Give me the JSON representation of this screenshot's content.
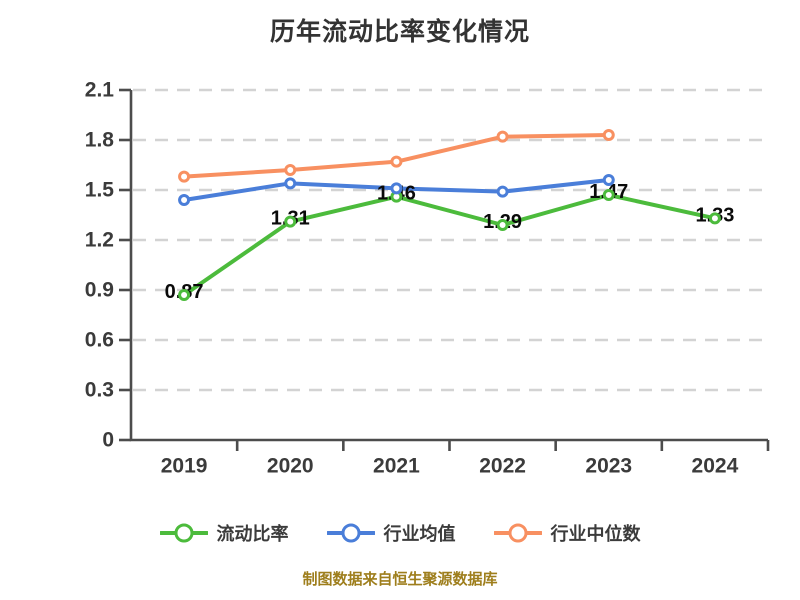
{
  "title": "历年流动比率变化情况",
  "footer": "制图数据来自恒生聚源数据库",
  "colors": {
    "title_text": "#333333",
    "axis_line": "#4c4c4c",
    "axis_label": "#3b3b3b",
    "gridline": "#d3d3d3",
    "data_label": "#0a0a0a",
    "legend_text": "#3b3b3b",
    "footer_text": "#9e7e1c",
    "marker_fill": "#ffffff"
  },
  "chart_data": {
    "type": "line",
    "title": "历年流动比率变化情况",
    "categories": [
      "2019",
      "2020",
      "2021",
      "2022",
      "2023",
      "2024"
    ],
    "y_ticks": [
      0,
      0.3,
      0.6,
      0.9,
      1.2,
      1.5,
      1.8,
      2.1
    ],
    "ylim": [
      0,
      2.1
    ],
    "xlabel": "",
    "ylabel": "",
    "grid": "horizontal-dashed",
    "legend_position": "bottom",
    "series": [
      {
        "id": "current-ratio",
        "name": "流动比率",
        "color": "#4cbb3c",
        "values": [
          0.87,
          1.31,
          1.46,
          1.29,
          1.47,
          1.33
        ],
        "point_labels": [
          "0.87",
          "1.31",
          "1.46",
          "1.29",
          "1.47",
          "1.33"
        ]
      },
      {
        "id": "industry-mean",
        "name": "行业均值",
        "color": "#4a7ed9",
        "values": [
          1.44,
          1.54,
          1.51,
          1.49,
          1.56,
          null
        ],
        "point_labels": null
      },
      {
        "id": "industry-median",
        "name": "行业中位数",
        "color": "#f89061",
        "values": [
          1.58,
          1.62,
          1.67,
          1.82,
          1.83,
          null
        ],
        "point_labels": null
      }
    ]
  }
}
